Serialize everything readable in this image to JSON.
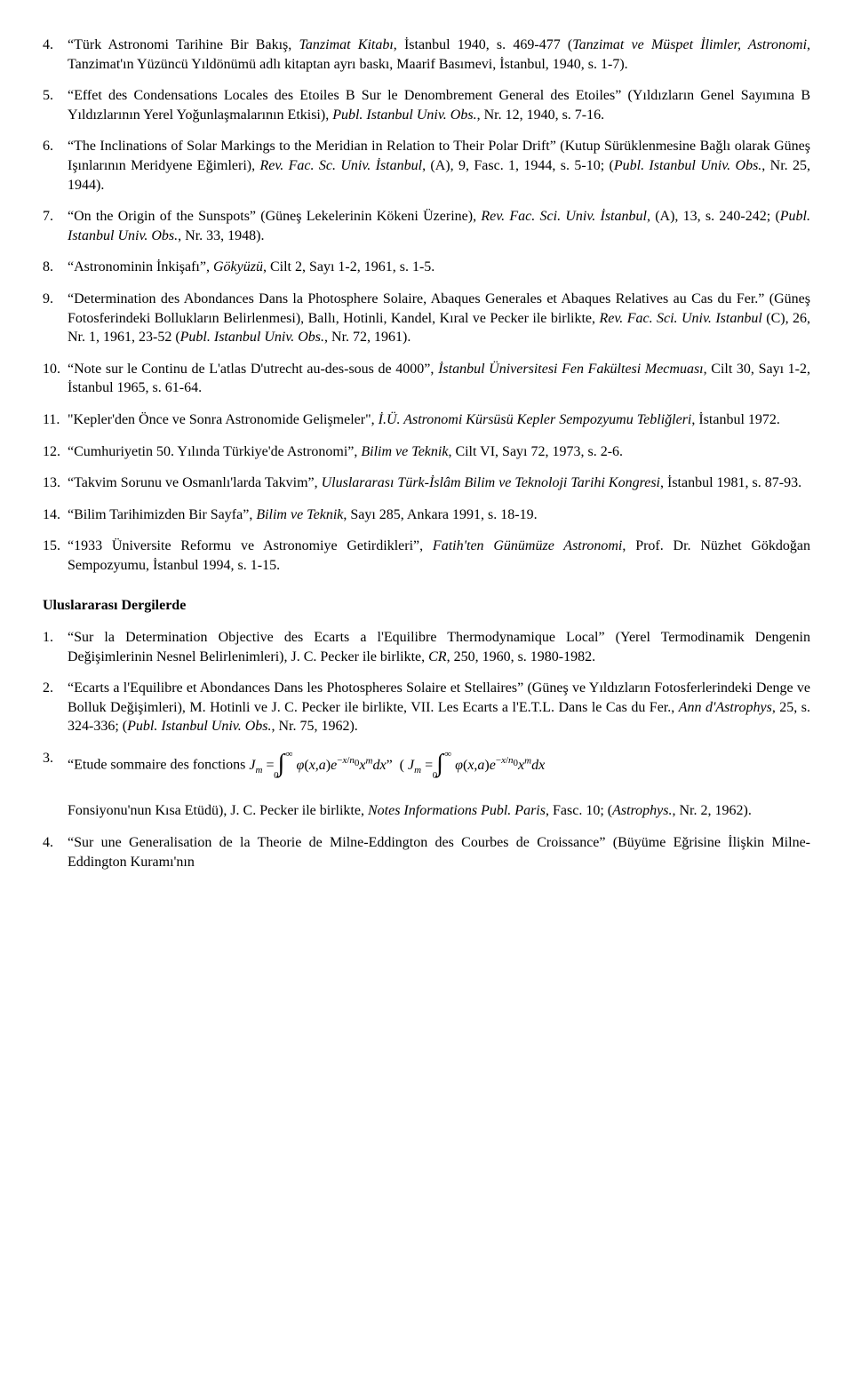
{
  "items": [
    {
      "n": "4.",
      "text": "“Türk Astronomi Tarihine Bir Bakış, <i>Tanzimat Kitabı</i>, İstanbul 1940, s. 469-477 (<i>Tanzimat ve Müspet İlimler, Astronomi</i>, Tanzimat'ın Yüzüncü Yıldönümü adlı kitaptan ayrı baskı, Maarif Basımevi, İstanbul, 1940, s. 1-7)."
    },
    {
      "n": "5.",
      "text": "“Effet des Condensations Locales des Etoiles B Sur le Denombrement General des Etoiles” (Yıldızların Genel Sayımına B Yıldızlarının Yerel Yoğunlaşmalarının Etkisi), <i>Publ. Istanbul Univ. Obs.</i>, Nr. 12, 1940, s. 7-16."
    },
    {
      "n": "6.",
      "text": "“The Inclinations of Solar Markings to the Meridian in Relation to Their Polar Drift” (Kutup Sürüklenmesine Bağlı olarak Güneş Işınlarının Meridyene Eğimleri), <i>Rev. Fac. Sc. Univ. İstanbul</i>, (A), 9, Fasc. 1, 1944, s. 5-10; (<i>Publ. Istanbul Univ. Obs.</i>, Nr. 25, 1944)."
    },
    {
      "n": "7.",
      "text": "“On the Origin of the Sunspots” (Güneş Lekelerinin Kökeni Üzerine), <i>Rev. Fac. Sci. Univ. İstanbul</i>, (A), 13, s. 240-242; (<i>Publ. Istanbul Univ. Obs.</i>, Nr. 33, 1948)."
    },
    {
      "n": "8.",
      "text": "“Astronominin İnkişafı”, <i>Gökyüzü</i>, Cilt 2, Sayı 1-2, 1961, s. 1-5."
    },
    {
      "n": "9.",
      "text": "“Determination des Abondances Dans la Photosphere Solaire, Abaques Generales et Abaques Relatives au Cas du Fer.” (Güneş Fotosferindeki Bollukların Belirlenmesi), Ballı, Hotinli, Kandel, Kıral ve Pecker ile birlikte, <i>Rev. Fac. Sci. Univ. Istanbul</i> (C), 26, Nr. 1, 1961, 23-52 (<i>Publ. Istanbul Univ. Obs.</i>, Nr. 72, 1961)."
    },
    {
      "n": "10.",
      "text": "“Note sur le Continu de L'atlas D'utrecht au-des-sous de 4000”, <i>İstanbul Üniversitesi Fen Fakültesi Mecmuası</i>, Cilt 30, Sayı 1-2, İstanbul 1965, s. 61-64."
    },
    {
      "n": "11.",
      "text": "\"Kepler'den Önce ve Sonra Astronomide Gelişmeler\", <i>İ.Ü. Astronomi Kürsüsü Kepler Sempozyumu Tebliğleri</i>, İstanbul 1972."
    },
    {
      "n": "12.",
      "text": "“Cumhuriyetin 50. Yılında Türkiye'de Astronomi”, <i>Bilim ve Teknik</i>, Cilt VI, Sayı 72, 1973, s. 2-6."
    },
    {
      "n": "13.",
      "text": "“Takvim Sorunu ve Osmanlı'larda Takvim”, <i>Uluslararası Türk-İslâm Bilim ve Teknoloji Tarihi Kongresi</i>, İstanbul 1981, s. 87-93."
    },
    {
      "n": "14.",
      "text": "“Bilim Tarihimizden Bir Sayfa”, <i>Bilim ve Teknik</i>, Sayı 285, Ankara 1991, s. 18-19."
    },
    {
      "n": "15.",
      "text": "“1933 Üniversite Reformu ve Astronomiye Getirdikleri”, <i>Fatih'ten Günümüze Astronomi</i>, Prof. Dr. Nüzhet Gökdoğan Sempozyumu, İstanbul 1994, s. 1-15."
    }
  ],
  "sectionTitle": "Uluslararası Dergilerde",
  "items2": [
    {
      "n": "1.",
      "text": "“Sur la Determination Objective des Ecarts a l'Equilibre Thermodynamique Local” (Yerel Termodinamik Dengenin Değişimlerinin Nesnel Belirlenimleri), J. C. Pecker ile birlikte, <i>CR</i>, 250, 1960, s. 1980-1982."
    },
    {
      "n": "2.",
      "text": "“Ecarts a l'Equilibre et Abondances Dans les Photospheres Solaire et Stellaires” (Güneş ve Yıldızların Fotosferlerindeki Denge ve Bolluk Değişimleri), M. Hotinli ve J. C. Pecker ile birlikte, VII. Les Ecarts a l'E.T.L. Dans le Cas du Fer., <i>Ann d'Astrophys</i>, 25, s. 324-336; (<i>Publ. Istanbul Univ. Obs.</i>, Nr. 75, 1962)."
    }
  ],
  "item3": {
    "n": "3.",
    "lead": "“Etude sommaire des fonctions ",
    "tail": "Fonsiyonu'nun Kısa Etüdü), J. C. Pecker ile birlikte, <i>Notes Informations Publ. Paris</i>, Fasc. 10; (<i>Astrophys.</i>, Nr. 2, 1962)."
  },
  "item4": {
    "n": "4.",
    "text": "“Sur une Generalisation de la Theorie de Milne-Eddington des Courbes de Croissance” (Büyüme Eğrisine İlişkin Milne-Eddington Kuramı'nın"
  }
}
